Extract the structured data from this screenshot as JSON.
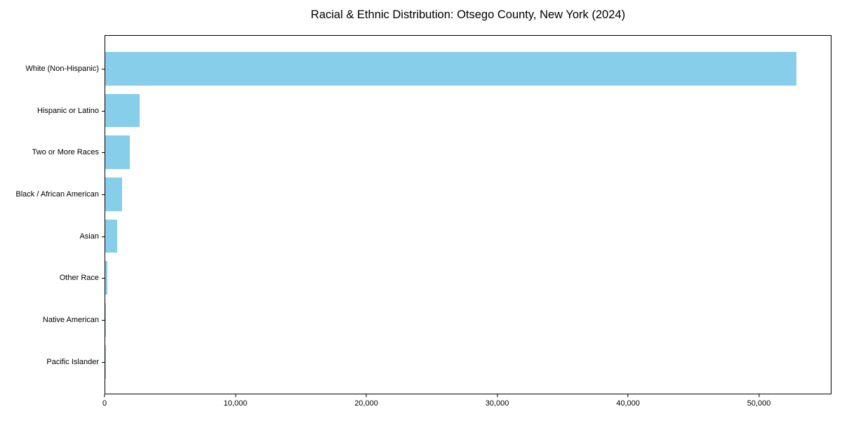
{
  "chart_data": {
    "type": "bar",
    "orientation": "horizontal",
    "title": "Racial & Ethnic Distribution: Otsego County, New York (2024)",
    "categories": [
      "White (Non-Hispanic)",
      "Hispanic or Latino",
      "Two or More Races",
      "Black / African American",
      "Asian",
      "Other Race",
      "Native American",
      "Pacific Islander"
    ],
    "values": [
      52900,
      2650,
      1875,
      1290,
      910,
      160,
      55,
      15
    ],
    "xlabel": "",
    "ylabel": "",
    "xlim": [
      0,
      55545
    ],
    "x_ticks": [
      0,
      10000,
      20000,
      30000,
      40000,
      50000
    ],
    "x_tick_labels": [
      "0",
      "10,000",
      "20,000",
      "30,000",
      "40,000",
      "50,000"
    ],
    "bar_color": "#87CEEB",
    "background_color": "#ffffff",
    "spine_color": "#000000",
    "grid": false,
    "legend": "none"
  }
}
